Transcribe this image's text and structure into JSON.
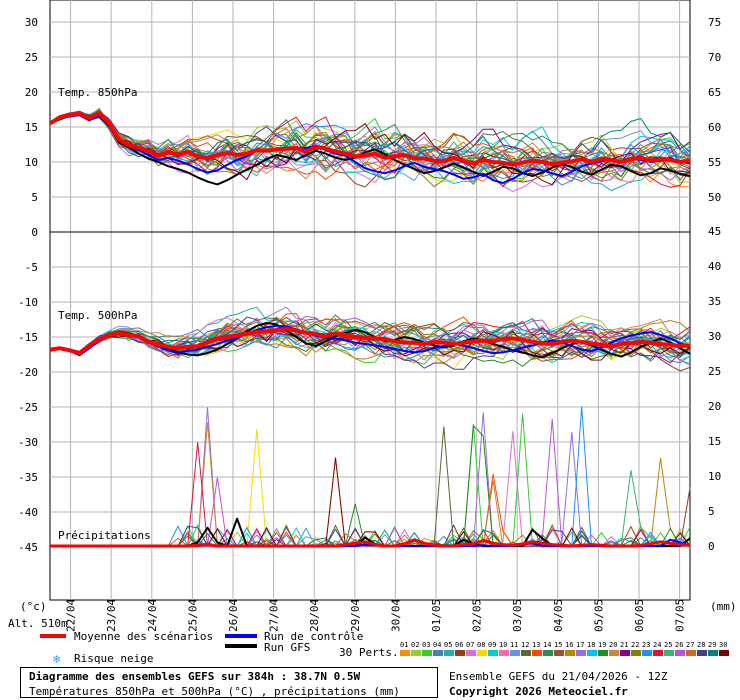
{
  "chart_data": {
    "type": "line",
    "title": "Diagramme des ensembles GEFS sur 384h : 38.7N 0.5W",
    "subtitle": "Températures 850hPa et 500hPa (°C) , précipitations (mm)",
    "run_info": "Ensemble GEFS du 21/04/2026 - 12Z",
    "copyright": "Copyright 2026 Meteociel.fr",
    "altitude": "Alt. 510m",
    "left_unit": "(°c)",
    "right_unit": "(mm)",
    "left_ticks": [
      30,
      25,
      20,
      15,
      10,
      5,
      0,
      -5,
      -10,
      -15,
      -20,
      -25,
      -30,
      -35,
      -40,
      -45
    ],
    "right_ticks_850": [
      75,
      70,
      65,
      60,
      55,
      50
    ],
    "right_ticks_500": [
      45,
      40,
      35,
      30,
      25,
      20,
      15,
      10,
      5,
      0
    ],
    "x_dates": [
      "22/04",
      "23/04",
      "24/04",
      "25/04",
      "26/04",
      "27/04",
      "28/04",
      "29/04",
      "30/04",
      "01/05",
      "02/05",
      "03/05",
      "04/05",
      "05/05",
      "06/05",
      "07/05"
    ],
    "panel_labels": {
      "t850": "Temp. 850hPa",
      "t500": "Temp. 500hPa",
      "precip": "Précipitations"
    },
    "legend": {
      "mean": "Moyenne des scénarios",
      "control": "Run de contrôle",
      "gfs": "Run GFS",
      "snow": "Risque neige",
      "perts": "30 Perts."
    },
    "pert_numbers": [
      "01",
      "02",
      "03",
      "04",
      "05",
      "06",
      "07",
      "08",
      "09",
      "10",
      "11",
      "12",
      "13",
      "14",
      "15",
      "16",
      "17",
      "18",
      "19",
      "20",
      "21",
      "22",
      "23",
      "24",
      "25",
      "26",
      "27",
      "28",
      "29",
      "30"
    ],
    "colors": {
      "mean": "#ff0000",
      "control": "#0000ff",
      "gfs": "#000000",
      "perts": [
        "#ff8c00",
        "#9acd32",
        "#32cd32",
        "#4682b4",
        "#20b2aa",
        "#8b4513",
        "#da70d6",
        "#ffd700",
        "#00ced1",
        "#ff69b4",
        "#6495ed",
        "#556b2f",
        "#ff4500",
        "#2e8b57",
        "#a0522d",
        "#b8860b",
        "#9370db",
        "#00bfff",
        "#228b22",
        "#cd853f",
        "#8b008b",
        "#808000",
        "#1e90ff",
        "#dc143c",
        "#3cb371",
        "#ba55d3",
        "#d2691e",
        "#483d8b",
        "#008080",
        "#800000"
      ]
    },
    "series": {
      "t850_mean": [
        15.5,
        16.4,
        16.8,
        16.9,
        16.3,
        17.0,
        15.5,
        13.2,
        12.4,
        12.0,
        11.6,
        10.9,
        11.4,
        11.0,
        11.5,
        10.8,
        10.6,
        11.0,
        11.3,
        11.0,
        11.2,
        11.7,
        11.6,
        11.8,
        11.9,
        12.0,
        11.5,
        12.2,
        11.9,
        11.5,
        11.2,
        10.8,
        10.9,
        11.2,
        10.6,
        10.8,
        11.0,
        10.5,
        10.5,
        10.2,
        10.1,
        10.6,
        10.1,
        9.8,
        10.3,
        10.0,
        9.9,
        9.6,
        9.9,
        10.2,
        10.0,
        9.7,
        9.9,
        10.1,
        10.4,
        10.0,
        10.5,
        10.3,
        10.0,
        10.4,
        10.6,
        10.2,
        10.5,
        10.3,
        10.0,
        10.2
      ],
      "t850_control": [
        15.5,
        16.3,
        16.5,
        16.7,
        16.0,
        16.6,
        15.3,
        13.0,
        12.3,
        11.7,
        11.0,
        10.3,
        10.6,
        10.2,
        9.7,
        9.0,
        8.5,
        8.8,
        9.6,
        10.3,
        10.8,
        11.6,
        11.7,
        11.9,
        11.8,
        11.9,
        12.0,
        12.3,
        11.7,
        11.2,
        10.9,
        10.0,
        9.1,
        8.7,
        8.4,
        8.8,
        9.4,
        9.9,
        9.3,
        9.0,
        8.7,
        8.2,
        7.6,
        7.8,
        8.3,
        7.4,
        7.0,
        7.6,
        8.4,
        9.0,
        8.8,
        8.4,
        8.0,
        8.6,
        9.4,
        9.8,
        10.1,
        10.4,
        10.0,
        10.5,
        10.3,
        10.0,
        10.2,
        10.6,
        10.0,
        9.8
      ],
      "t850_gfs": [
        15.5,
        16.1,
        16.6,
        16.8,
        16.2,
        16.5,
        15.2,
        12.8,
        12.1,
        11.2,
        10.5,
        10.0,
        9.4,
        9.0,
        8.5,
        7.8,
        7.2,
        6.8,
        7.4,
        8.2,
        8.9,
        9.6,
        10.4,
        11.0,
        10.7,
        10.3,
        11.0,
        11.6,
        11.2,
        10.6,
        10.3,
        10.6,
        11.4,
        11.8,
        11.1,
        10.3,
        9.6,
        9.0,
        8.4,
        8.7,
        9.2,
        9.8,
        9.2,
        8.6,
        8.0,
        8.6,
        9.3,
        9.1,
        8.4,
        8.0,
        8.5,
        9.2,
        9.7,
        9.3,
        8.6,
        8.2,
        8.9,
        9.6,
        9.4,
        8.7,
        8.1,
        8.4,
        9.1,
        8.8,
        8.3,
        8.0
      ],
      "t500_mean": [
        -16.8,
        -16.6,
        -16.9,
        -17.3,
        -16.2,
        -15.3,
        -14.7,
        -14.4,
        -14.7,
        -14.9,
        -15.7,
        -16.1,
        -16.4,
        -16.6,
        -16.4,
        -16.3,
        -15.8,
        -15.3,
        -15.0,
        -14.8,
        -14.5,
        -14.3,
        -14.2,
        -14.0,
        -13.8,
        -14.1,
        -14.4,
        -14.6,
        -14.8,
        -14.5,
        -14.7,
        -15.0,
        -15.1,
        -15.2,
        -15.3,
        -15.6,
        -15.8,
        -15.8,
        -16.0,
        -15.7,
        -15.8,
        -16.0,
        -15.8,
        -15.6,
        -15.5,
        -15.6,
        -15.3,
        -15.2,
        -15.4,
        -15.7,
        -15.9,
        -16.0,
        -15.7,
        -15.5,
        -15.7,
        -15.9,
        -16.1,
        -16.3,
        -16.0,
        -15.9,
        -15.7,
        -15.8,
        -16.0,
        -16.1,
        -16.3,
        -16.2
      ],
      "t500_control": [
        -16.8,
        -16.7,
        -17.0,
        -17.6,
        -16.6,
        -15.5,
        -14.8,
        -14.3,
        -14.6,
        -14.9,
        -15.7,
        -16.4,
        -16.9,
        -17.3,
        -17.0,
        -16.8,
        -16.4,
        -16.0,
        -15.5,
        -15.1,
        -14.5,
        -14.0,
        -13.6,
        -13.4,
        -13.5,
        -13.9,
        -14.4,
        -14.8,
        -15.0,
        -15.2,
        -15.5,
        -15.8,
        -16.0,
        -16.2,
        -16.4,
        -16.7,
        -17.0,
        -17.2,
        -17.0,
        -16.6,
        -16.3,
        -16.0,
        -16.2,
        -16.6,
        -17.0,
        -17.3,
        -17.2,
        -16.9,
        -16.5,
        -16.2,
        -15.8,
        -15.5,
        -15.8,
        -16.3,
        -16.8,
        -17.0,
        -16.5,
        -15.8,
        -15.2,
        -14.8,
        -14.5,
        -14.3,
        -14.7,
        -15.2,
        -15.9,
        -16.5
      ],
      "t500_gfs": [
        -16.8,
        -16.5,
        -16.8,
        -17.2,
        -16.1,
        -15.2,
        -14.6,
        -14.2,
        -14.5,
        -14.8,
        -15.6,
        -16.3,
        -16.8,
        -17.2,
        -17.5,
        -17.6,
        -17.3,
        -16.8,
        -16.0,
        -15.2,
        -14.2,
        -13.4,
        -13.0,
        -13.2,
        -14.1,
        -15.0,
        -15.9,
        -16.3,
        -15.6,
        -14.9,
        -14.4,
        -14.0,
        -14.3,
        -15.0,
        -15.6,
        -15.4,
        -15.0,
        -15.3,
        -15.8,
        -16.2,
        -16.5,
        -16.2,
        -15.6,
        -15.2,
        -15.5,
        -16.0,
        -16.4,
        -16.9,
        -17.2,
        -17.6,
        -17.9,
        -17.3,
        -16.6,
        -16.0,
        -15.7,
        -16.2,
        -16.8,
        -17.4,
        -17.8,
        -17.2,
        -16.4,
        -15.8,
        -15.2,
        -15.8,
        -16.6,
        -17.4
      ],
      "precip_mean": [
        0,
        0,
        0,
        0,
        0,
        0,
        0,
        0,
        0,
        0,
        0,
        0,
        0,
        0,
        0,
        0.1,
        0.2,
        0,
        0,
        0,
        0,
        0,
        0,
        0,
        0,
        0,
        0,
        0,
        0,
        0,
        0.2,
        0.4,
        0.6,
        0.2,
        0,
        0,
        0.3,
        0.9,
        0.4,
        0.1,
        0,
        0,
        0.2,
        0.3,
        0.8,
        0.4,
        0.2,
        0.1,
        0.3,
        0.6,
        0.4,
        0.2,
        0.1,
        0,
        0.1,
        0.2,
        0.1,
        0,
        0,
        0,
        0.1,
        0.3,
        0.6,
        0.4,
        0.2,
        0.1
      ],
      "precip_control": [
        0,
        0,
        0,
        0,
        0,
        0,
        0,
        0,
        0,
        0,
        0,
        0,
        0,
        0,
        0,
        0,
        0.1,
        0,
        0,
        0,
        0,
        0,
        0,
        0,
        0,
        0,
        0,
        0,
        0,
        0,
        0,
        0,
        0.2,
        0.1,
        0,
        0,
        0,
        0,
        0,
        0,
        0,
        0,
        0,
        0,
        0.1,
        0,
        0,
        0,
        0.2,
        0.4,
        0,
        0,
        0,
        0,
        0,
        0,
        0,
        0,
        0,
        0,
        0,
        0,
        0,
        0.9,
        0.5,
        0
      ],
      "precip_gfs": [
        0,
        0,
        0,
        0,
        0,
        0,
        0,
        0,
        0,
        0,
        0,
        0,
        0,
        0,
        0,
        0.5,
        2.6,
        0.5,
        0,
        3.9,
        0,
        0,
        0,
        0,
        0,
        0,
        0,
        0,
        0,
        0,
        0,
        0,
        1.2,
        0.3,
        0,
        0,
        0,
        0,
        0,
        0,
        0,
        0,
        0.9,
        0.3,
        0,
        0,
        0,
        0,
        0,
        2.3,
        1.1,
        0,
        0,
        0,
        0,
        0,
        0,
        0,
        0,
        0,
        0,
        0,
        0,
        0,
        0,
        1.1
      ]
    }
  }
}
